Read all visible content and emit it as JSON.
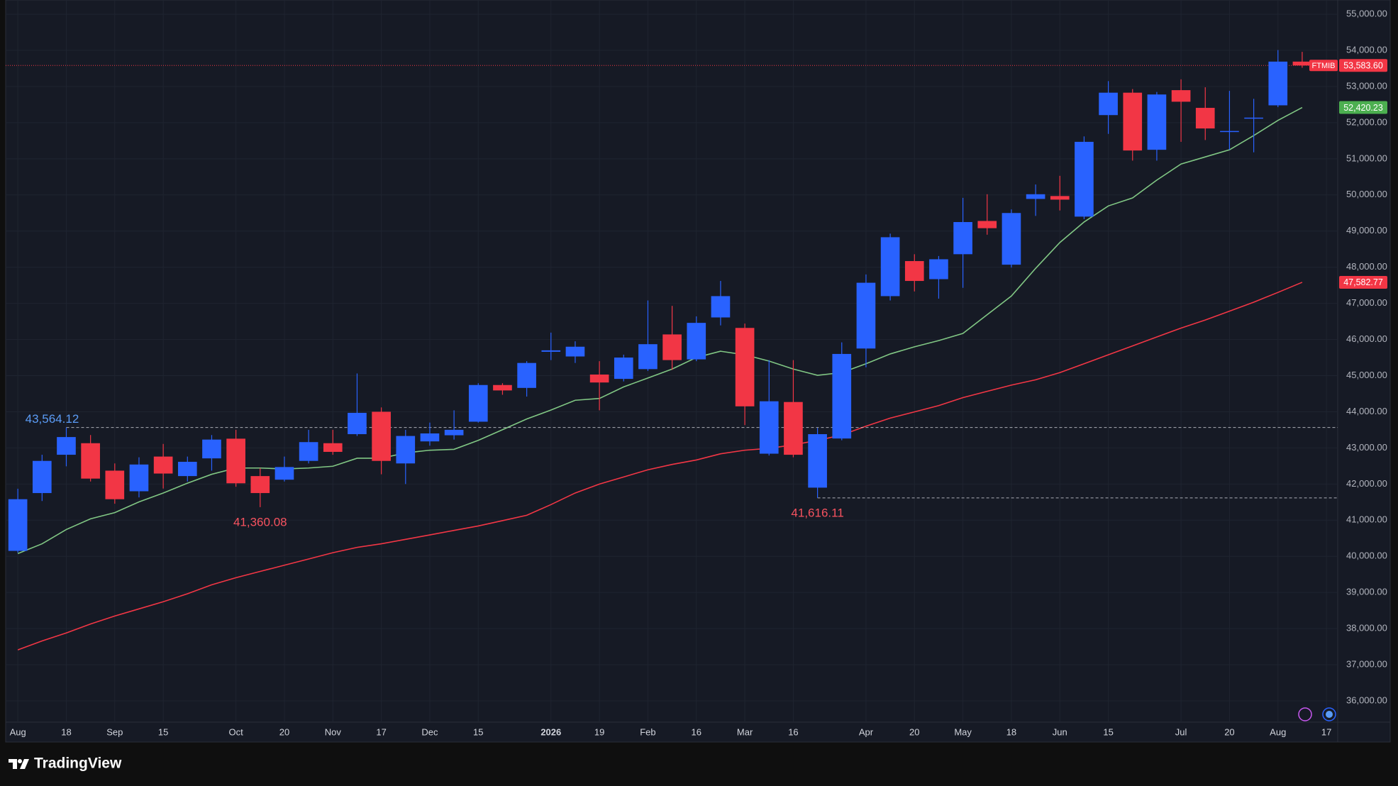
{
  "chart_data": {
    "type": "candlestick",
    "symbol": "FTMIB",
    "categories": [
      "Aug",
      null,
      "18",
      null,
      "Sep",
      null,
      "15",
      null,
      null,
      "Oct",
      null,
      "20",
      null,
      "Nov",
      null,
      "17",
      null,
      "Dec",
      null,
      "15",
      null,
      null,
      "2026",
      null,
      "19",
      null,
      "Feb",
      null,
      "16",
      null,
      "Mar",
      null,
      "16",
      null,
      null,
      "Apr",
      null,
      "20",
      null,
      "May",
      null,
      "18",
      null,
      "Jun",
      null,
      "15",
      null,
      null,
      "Jul",
      null,
      "20",
      null,
      "Aug",
      null,
      "17"
    ],
    "open": [
      40150,
      41750,
      42810,
      43130,
      42370,
      41800,
      42760,
      42220,
      42710,
      43255,
      42220,
      42120,
      42640,
      43130,
      43380,
      44000,
      42570,
      43180,
      43350,
      43725,
      44740,
      44660,
      45660,
      45530,
      45030,
      44910,
      45180,
      46140,
      45450,
      46610,
      46320,
      42840,
      44270,
      41900,
      43260,
      45750,
      47200,
      48170,
      47670,
      48360,
      49280,
      48070,
      49890,
      49970,
      49400,
      52210,
      52830,
      51250,
      52900,
      52410,
      51760,
      52130,
      52480,
      53690,
      null
    ],
    "high": [
      41870,
      42810,
      43564.12,
      43356,
      42570,
      42740,
      43110,
      42760,
      43355,
      43500,
      42440,
      42760,
      43500,
      43500,
      45060,
      44120,
      43500,
      43700,
      44040,
      44790,
      44790,
      45400,
      46190,
      45950,
      45400,
      45580,
      47080,
      46930,
      46640,
      47620,
      46440,
      45430,
      45430,
      43550,
      45920,
      47800,
      48930,
      48360,
      48310,
      49920,
      50020,
      49600,
      50290,
      50530,
      51620,
      53150,
      52930,
      52850,
      53200,
      52980,
      52880,
      52660,
      54010,
      53960,
      null
    ],
    "low": [
      40100,
      41530,
      42490,
      42070,
      41455,
      41630,
      41875,
      42070,
      42370,
      41925,
      41360.08,
      42070,
      42570,
      42810,
      43330,
      42270,
      42000,
      43060,
      43230,
      43700,
      44470,
      44420,
      45430,
      45350,
      44040,
      44840,
      45130,
      45160,
      45400,
      46390,
      43630,
      42790,
      42740,
      41616.11,
      43210,
      45230,
      47080,
      47330,
      47130,
      47430,
      48900,
      47990,
      49420,
      49570,
      49330,
      51690,
      50950,
      50950,
      51470,
      51520,
      51250,
      51180,
      52430,
      53520,
      null
    ],
    "close": [
      41580,
      42640,
      43300,
      42150,
      41580,
      42540,
      42290,
      42615,
      43230,
      42020,
      41750,
      42470,
      43160,
      42890,
      43970,
      42640,
      43330,
      43400,
      43500,
      44740,
      44590,
      45350,
      45700,
      45800,
      44810,
      45500,
      45870,
      45430,
      46460,
      47200,
      44150,
      44290,
      42810,
      43380,
      45600,
      47570,
      48830,
      47620,
      48220,
      49250,
      49080,
      49500,
      50020,
      49870,
      51470,
      52830,
      51230,
      52780,
      52580,
      51840,
      51770,
      52140,
      53690,
      53583.6,
      null
    ],
    "up_color": "#2962ff",
    "down_color": "#f23645",
    "lines": [
      {
        "color": "#81c784",
        "last_label": "52,420.23",
        "values": [
          40075,
          40346,
          40741,
          41037,
          41209,
          41505,
          41752,
          42024,
          42270,
          42443,
          42443,
          42418,
          42443,
          42492,
          42714,
          42714,
          42862,
          42936,
          42960,
          43208,
          43504,
          43800,
          44047,
          44318,
          44368,
          44688,
          44934,
          45181,
          45502,
          45675,
          45576,
          45403,
          45181,
          45009,
          45083,
          45329,
          45600,
          45797,
          45970,
          46168,
          46686,
          47204,
          47969,
          48684,
          49252,
          49696,
          49918,
          50411,
          50855,
          51053,
          51250,
          51645,
          52064,
          52420.23,
          null
        ]
      },
      {
        "color": "#f23645",
        "last_label": "47,582.77",
        "values": [
          37410,
          37657,
          37879,
          38126,
          38348,
          38545,
          38743,
          38964,
          39211,
          39408,
          39581,
          39753,
          39926,
          40099,
          40247,
          40346,
          40469,
          40592,
          40716,
          40839,
          40987,
          41135,
          41431,
          41752,
          41999,
          42196,
          42394,
          42542,
          42665,
          42837,
          42936,
          42986,
          43084,
          43208,
          43356,
          43602,
          43824,
          43997,
          44170,
          44392,
          44565,
          44737,
          44885,
          45083,
          45329,
          45576,
          45823,
          46069,
          46316,
          46538,
          46785,
          47032,
          47303,
          47582.77,
          null
        ]
      }
    ],
    "price_line": {
      "value": 53583.6,
      "label": "53,583.60",
      "color": "#f23645"
    },
    "annotations": [
      {
        "value": 43564.12,
        "label": "43,564.12",
        "color": "#5b9cf6",
        "line": true
      },
      {
        "value": 41360.08,
        "label": "41,360.08",
        "color": "#f7525f",
        "line": false
      },
      {
        "value": 41616.11,
        "label": "41,616.11",
        "color": "#f7525f",
        "line": true
      }
    ],
    "ylim": [
      35410,
      55395
    ],
    "yticks": [
      {
        "value": 36000,
        "label": "36,000.00"
      },
      {
        "value": 37000,
        "label": "37,000.00"
      },
      {
        "value": 38000,
        "label": "38,000.00"
      },
      {
        "value": 39000,
        "label": "39,000.00"
      },
      {
        "value": 40000,
        "label": "40,000.00"
      },
      {
        "value": 41000,
        "label": "41,000.00"
      },
      {
        "value": 42000,
        "label": "42,000.00"
      },
      {
        "value": 43000,
        "label": "43,000.00"
      },
      {
        "value": 44000,
        "label": "44,000.00"
      },
      {
        "value": 45000,
        "label": "45,000.00"
      },
      {
        "value": 46000,
        "label": "46,000.00"
      },
      {
        "value": 47000,
        "label": "47,000.00"
      },
      {
        "value": 48000,
        "label": "48,000.00"
      },
      {
        "value": 49000,
        "label": "49,000.00"
      },
      {
        "value": 50000,
        "label": "50,000.00"
      },
      {
        "value": 51000,
        "label": "51,000.00"
      },
      {
        "value": 52000,
        "label": "52,000.00"
      },
      {
        "value": 53000,
        "label": "53,000.00"
      },
      {
        "value": 54000,
        "label": "54,000.00"
      },
      {
        "value": 55000,
        "label": "55,000.00"
      }
    ],
    "grid": true,
    "branding": "TradingView"
  }
}
